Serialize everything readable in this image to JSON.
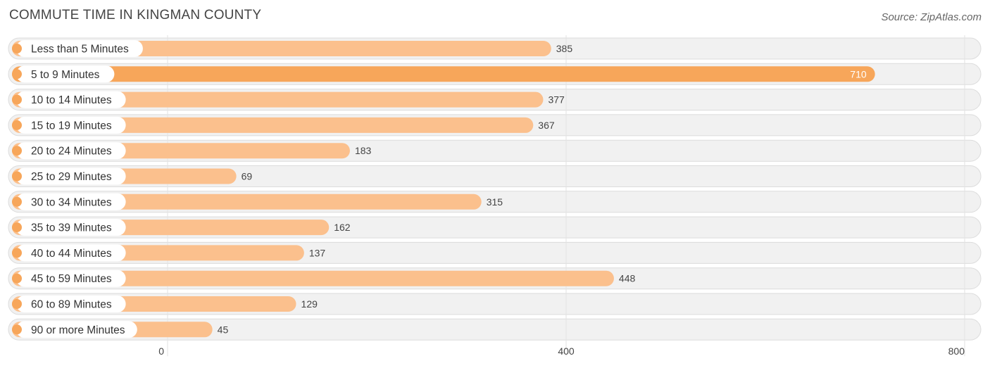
{
  "title": "COMMUTE TIME IN KINGMAN COUNTY",
  "source": "Source: ZipAtlas.com",
  "colors": {
    "bar_normal": "#fbc08d",
    "bar_highlight": "#f7a65a",
    "dot": "#f7a65a"
  },
  "chart_data": {
    "type": "bar",
    "orientation": "horizontal",
    "categories": [
      "Less than 5 Minutes",
      "5 to 9 Minutes",
      "10 to 14 Minutes",
      "15 to 19 Minutes",
      "20 to 24 Minutes",
      "25 to 29 Minutes",
      "30 to 34 Minutes",
      "35 to 39 Minutes",
      "40 to 44 Minutes",
      "45 to 59 Minutes",
      "60 to 89 Minutes",
      "90 or more Minutes"
    ],
    "values": [
      385,
      710,
      377,
      367,
      183,
      69,
      315,
      162,
      137,
      448,
      129,
      45
    ],
    "value_labels": [
      "385",
      "710",
      "377",
      "367",
      "183",
      "69",
      "315",
      "162",
      "137",
      "448",
      "129",
      "45"
    ],
    "xlim": [
      0,
      800
    ],
    "ticks": [
      0,
      400,
      800
    ],
    "tick_labels": [
      "0",
      "400",
      "800"
    ],
    "grid": true,
    "xlabel": "",
    "ylabel": ""
  }
}
